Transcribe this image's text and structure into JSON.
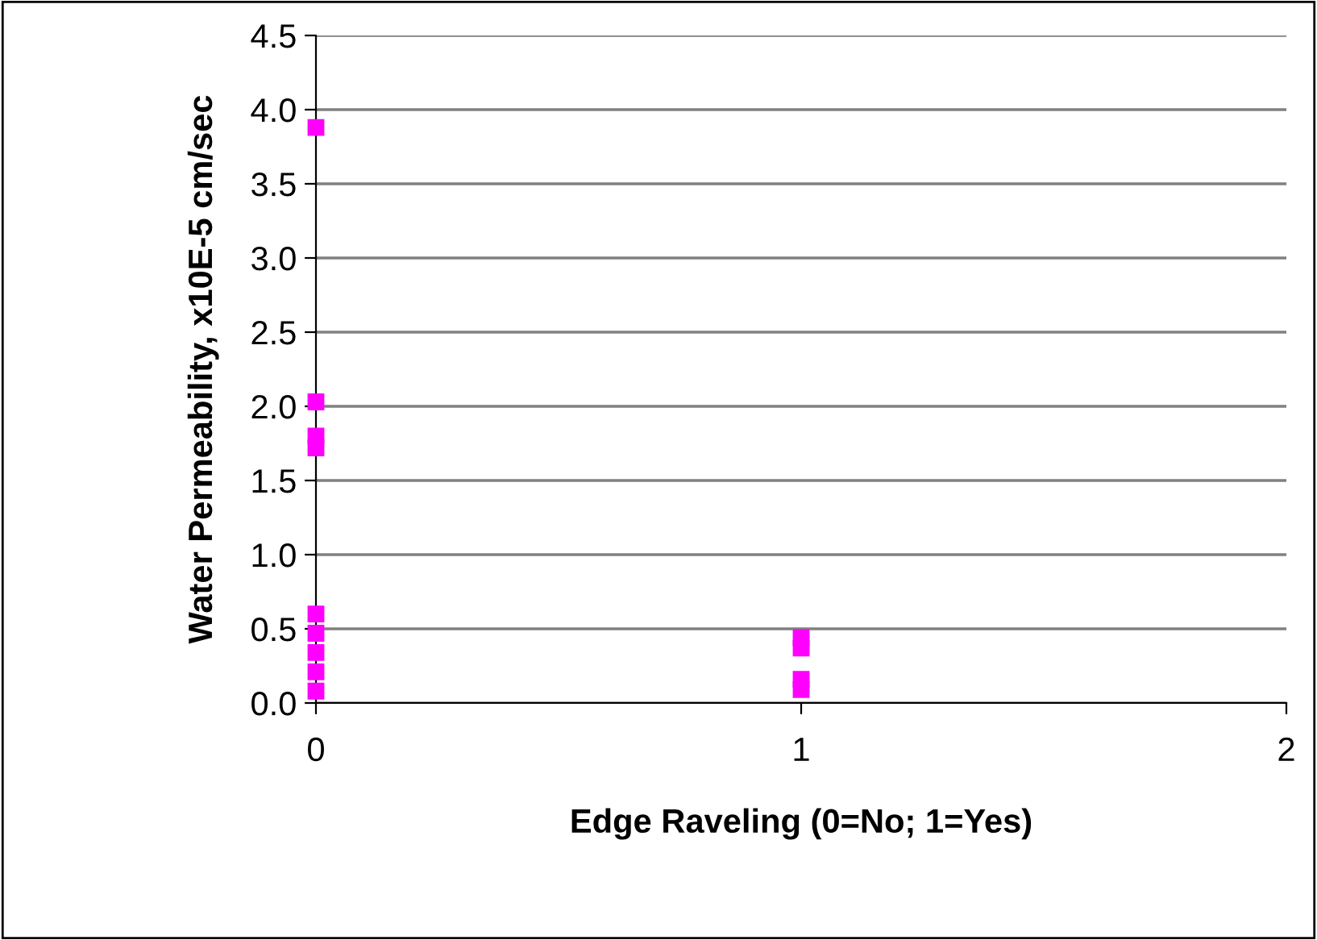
{
  "chart_data": {
    "type": "scatter",
    "xlabel": "Edge Raveling (0=No; 1=Yes)",
    "ylabel": "Water Permeability, x10E-5 cm/sec",
    "series": [
      {
        "color": "#ff00ff",
        "x": [
          "0",
          "0",
          "0",
          "0",
          "0",
          "0",
          "0",
          "0",
          "0",
          "1",
          "1",
          "1",
          "1"
        ],
        "values": [
          3.88,
          2.03,
          1.8,
          1.72,
          0.6,
          0.47,
          0.34,
          0.21,
          0.08,
          0.44,
          0.37,
          0.16,
          0.09
        ]
      }
    ],
    "categories": [
      "0",
      "1",
      "2"
    ],
    "ylim": [
      0,
      4.5
    ],
    "yticks": [
      {
        "value": 0,
        "label": "0.0"
      },
      {
        "value": 0.5,
        "label": "0.5"
      },
      {
        "value": 1,
        "label": "1.0"
      },
      {
        "value": 1.5,
        "label": "1.5"
      },
      {
        "value": 2,
        "label": "2.0"
      },
      {
        "value": 2.5,
        "label": "2.5"
      },
      {
        "value": 3,
        "label": "3.0"
      },
      {
        "value": 3.5,
        "label": "3.5"
      },
      {
        "value": 4,
        "label": "4.0"
      },
      {
        "value": 4.5,
        "label": "4.5"
      }
    ],
    "grid": "y",
    "marker": "square"
  }
}
